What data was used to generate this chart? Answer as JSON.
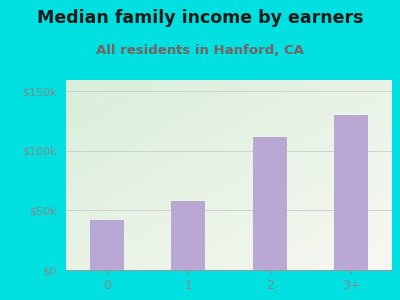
{
  "categories": [
    "0",
    "1",
    "2",
    "3+"
  ],
  "values": [
    42000,
    58000,
    112000,
    130000
  ],
  "bar_color": "#b9a8d4",
  "title": "Median family income by earners",
  "subtitle": "All residents in Hanford, CA",
  "title_fontsize": 12.5,
  "subtitle_fontsize": 9.5,
  "title_color": "#1a1a1a",
  "subtitle_color": "#7a6060",
  "yticks": [
    0,
    50000,
    100000,
    150000
  ],
  "ytick_labels": [
    "$0",
    "$50k",
    "$100k",
    "$150k"
  ],
  "ylim": [
    0,
    160000
  ],
  "background_outer": "#00e0e0",
  "background_inner_left_top": "#d8eeda",
  "background_inner_right_bottom": "#f8f8f2",
  "tick_color": "#888888",
  "grid_color": "#cccccc"
}
